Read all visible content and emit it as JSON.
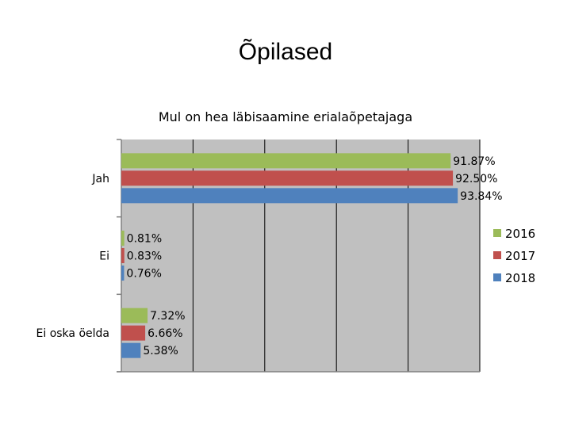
{
  "page": {
    "title": "Õpilased"
  },
  "chart_data": {
    "type": "bar",
    "orientation": "horizontal",
    "title": "Mul on hea läbisaamine erialaõpetajaga",
    "categories": [
      "Jah",
      "Ei",
      "Ei oska öelda"
    ],
    "series": [
      {
        "name": "2016",
        "color": "#9bbb59",
        "values": [
          91.87,
          0.81,
          7.32
        ],
        "labels": [
          "91.87%",
          "0.81%",
          "7.32%"
        ]
      },
      {
        "name": "2017",
        "color": "#c0504d",
        "values": [
          92.5,
          0.83,
          6.66
        ],
        "labels": [
          "92.50%",
          "0.83%",
          "6.66%"
        ]
      },
      {
        "name": "2018",
        "color": "#4f81bd",
        "values": [
          93.84,
          0.76,
          5.38
        ],
        "labels": [
          "93.84%",
          "0.76%",
          "5.38%"
        ]
      }
    ],
    "xlim": [
      0,
      100
    ],
    "grid": true,
    "plot_background": "#c0c0c0",
    "legend_position": "right"
  }
}
